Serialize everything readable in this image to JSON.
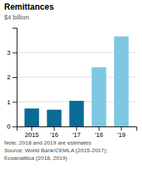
{
  "chart_data": {
    "type": "bar",
    "title": "Remittances",
    "ylabel": "$4 billion",
    "categories": [
      "2015",
      "'16",
      "'17",
      "'18",
      "'19"
    ],
    "values": [
      0.73,
      0.68,
      1.04,
      2.4,
      3.65
    ],
    "colors": [
      "#0a6b96",
      "#0a6b96",
      "#0a6b96",
      "#7ec8e3",
      "#7ec8e3"
    ],
    "ylim": [
      0,
      4
    ],
    "yticks": [
      0,
      1,
      2,
      3
    ],
    "grid": true,
    "annotations": [
      "Note: 2018 and 2019 are estimates",
      "Source: World Bank/CEMLA (2015-2017);",
      "Ecoanalitica (2018, 2019)"
    ]
  }
}
